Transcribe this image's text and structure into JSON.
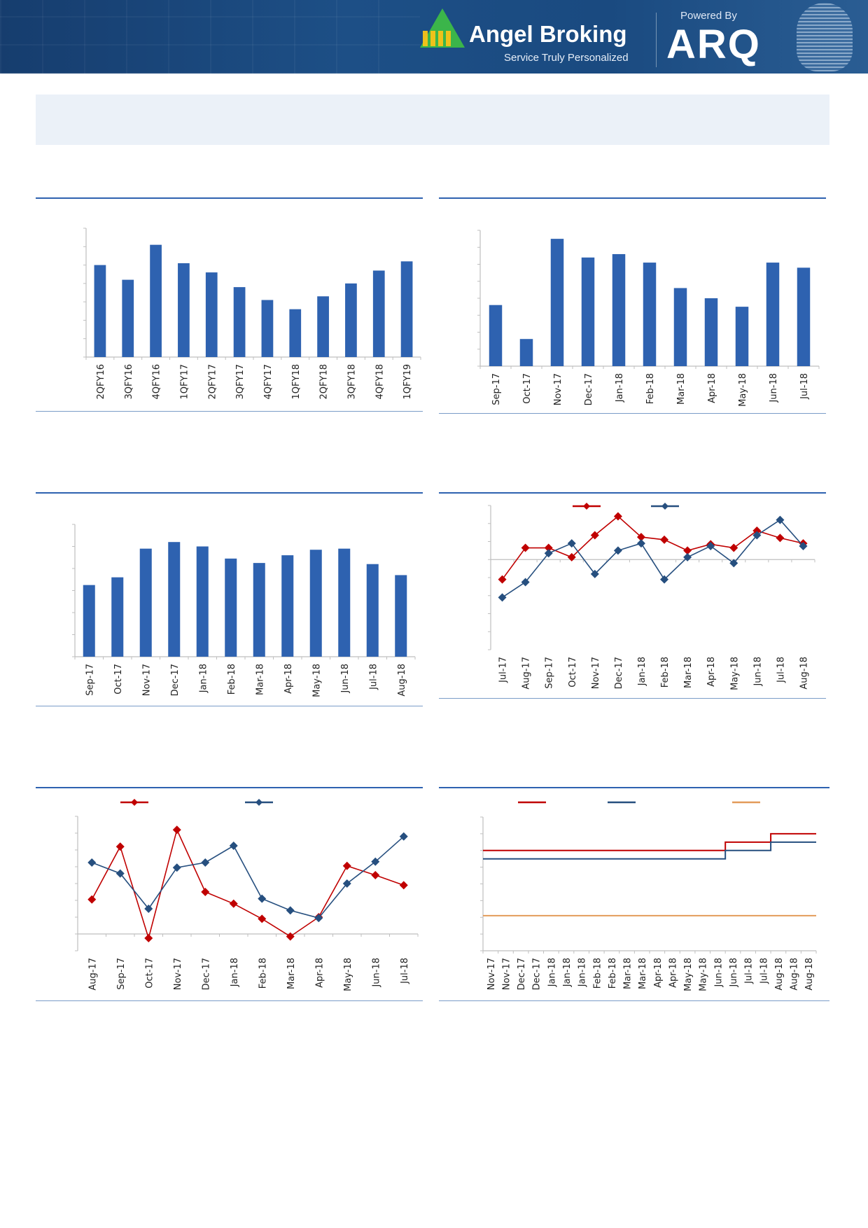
{
  "header": {
    "brand": "Angel Broking",
    "tagline": "Service Truly Personalized",
    "powered_by": "Powered By",
    "partner": "ARQ"
  },
  "colors": {
    "bar": "#2e62b0",
    "red_series": "#c00000",
    "blue_series": "#264f7f",
    "orange_series": "#e39b5a",
    "rule": "#2e62b0"
  },
  "chart_data": [
    {
      "type": "bar",
      "categories": [
        "2QFY16",
        "3QFY16",
        "4QFY16",
        "1QFY17",
        "2QFY17",
        "3QFY17",
        "4QFY17",
        "1QFY18",
        "2QFY18",
        "3QFY18",
        "4QFY18",
        "1QFY19"
      ],
      "values": [
        5.0,
        4.2,
        6.1,
        5.1,
        4.6,
        3.8,
        3.1,
        2.6,
        3.3,
        4.0,
        4.7,
        5.2
      ],
      "ylim": [
        0,
        7
      ],
      "grid": false,
      "y_tick_labels_shown": false
    },
    {
      "type": "bar",
      "categories": [
        "Sep-17",
        "Oct-17",
        "Nov-17",
        "Dec-17",
        "Jan-18",
        "Feb-18",
        "Mar-18",
        "Apr-18",
        "May-18",
        "Jun-18",
        "Jul-18"
      ],
      "values": [
        3.6,
        1.6,
        7.5,
        6.4,
        6.6,
        6.1,
        4.6,
        4.0,
        3.5,
        6.1,
        5.8
      ],
      "ylim": [
        0,
        8
      ],
      "grid": false,
      "y_tick_labels_shown": false
    },
    {
      "type": "bar",
      "categories": [
        "Sep-17",
        "Oct-17",
        "Nov-17",
        "Dec-17",
        "Jan-18",
        "Feb-18",
        "Mar-18",
        "Apr-18",
        "May-18",
        "Jun-18",
        "Jul-18",
        "Aug-18"
      ],
      "values": [
        3.25,
        3.6,
        4.9,
        5.2,
        5.0,
        4.45,
        4.25,
        4.6,
        4.85,
        4.9,
        4.2,
        3.7
      ],
      "ylim": [
        0,
        6
      ],
      "grid": false,
      "y_tick_labels_shown": false
    },
    {
      "type": "line",
      "categories": [
        "Jul-17",
        "Aug-17",
        "Sep-17",
        "Oct-17",
        "Nov-17",
        "Dec-17",
        "Jan-18",
        "Feb-18",
        "Mar-18",
        "Apr-18",
        "May-18",
        "Jun-18",
        "Jul-18",
        "Aug-18"
      ],
      "series": [
        {
          "color": "#c00000",
          "marker": "diamond",
          "values": [
            -1.1,
            0.65,
            0.65,
            0.13,
            1.35,
            2.4,
            1.25,
            1.1,
            0.5,
            0.85,
            0.65,
            1.6,
            1.2,
            0.9
          ]
        },
        {
          "color": "#264f7f",
          "marker": "diamond",
          "values": [
            -2.1,
            -1.25,
            0.35,
            0.9,
            -0.8,
            0.5,
            0.9,
            -1.1,
            0.13,
            0.75,
            -0.2,
            1.35,
            2.2,
            0.75
          ]
        }
      ],
      "ylim": [
        -5,
        3
      ],
      "legend": "top",
      "grid": false,
      "y_tick_labels_shown": false
    },
    {
      "type": "line",
      "categories": [
        "Aug-17",
        "Sep-17",
        "Oct-17",
        "Nov-17",
        "Dec-17",
        "Jan-18",
        "Feb-18",
        "Mar-18",
        "Apr-18",
        "May-18",
        "Jun-18",
        "Jul-18"
      ],
      "series": [
        {
          "color": "#c00000",
          "marker": "diamond",
          "values": [
            2.05,
            5.2,
            -0.25,
            6.2,
            2.5,
            1.8,
            0.9,
            -0.15,
            1.0,
            4.05,
            3.5,
            2.9
          ]
        },
        {
          "color": "#264f7f",
          "marker": "diamond",
          "values": [
            4.25,
            3.6,
            1.5,
            3.95,
            4.25,
            5.25,
            2.1,
            1.4,
            0.95,
            3.0,
            4.3,
            5.8
          ]
        }
      ],
      "ylim": [
        -1,
        7
      ],
      "legend": "top",
      "grid": false,
      "y_tick_labels_shown": false
    },
    {
      "type": "line",
      "step": true,
      "categories": [
        "Nov-17",
        "Nov-17",
        "Dec-17",
        "Dec-17",
        "Jan-18",
        "Jan-18",
        "Jan-18",
        "Feb-18",
        "Feb-18",
        "Mar-18",
        "Mar-18",
        "Apr-18",
        "Apr-18",
        "May-18",
        "May-18",
        "Jun-18",
        "Jun-18",
        "Jul-18",
        "Jul-18",
        "Aug-18",
        "Aug-18",
        "Aug-18"
      ],
      "series": [
        {
          "color": "#c00000",
          "values": [
            6.0,
            6.0,
            6.0,
            6.0,
            6.0,
            6.0,
            6.0,
            6.0,
            6.0,
            6.0,
            6.0,
            6.0,
            6.0,
            6.0,
            6.0,
            6.0,
            6.5,
            6.5,
            6.5,
            7.0,
            7.0,
            7.0
          ]
        },
        {
          "color": "#264f7f",
          "values": [
            5.5,
            5.5,
            5.5,
            5.5,
            5.5,
            5.5,
            5.5,
            5.5,
            5.5,
            5.5,
            5.5,
            5.5,
            5.5,
            5.5,
            5.5,
            5.5,
            6.0,
            6.0,
            6.0,
            6.5,
            6.5,
            6.5
          ]
        },
        {
          "color": "#e39b5a",
          "values": [
            2.1,
            2.1,
            2.1,
            2.1,
            2.1,
            2.1,
            2.1,
            2.1,
            2.1,
            2.1,
            2.1,
            2.1,
            2.1,
            2.1,
            2.1,
            2.1,
            2.1,
            2.1,
            2.1,
            2.1,
            2.1,
            2.1
          ]
        }
      ],
      "ylim": [
        0,
        8
      ],
      "legend": "top",
      "grid": false,
      "y_tick_labels_shown": false
    }
  ]
}
